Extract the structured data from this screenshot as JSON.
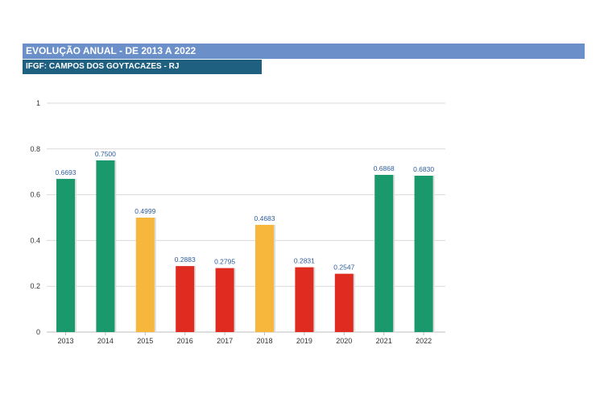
{
  "header": {
    "title": "EVOLUÇÃO ANUAL - DE 2013 A 2022",
    "subtitle": "IFGF: CAMPOS DOS GOYTACAZES - RJ"
  },
  "chart_data": {
    "type": "bar",
    "categories": [
      "2013",
      "2014",
      "2015",
      "2016",
      "2017",
      "2018",
      "2019",
      "2020",
      "2021",
      "2022"
    ],
    "values": [
      0.6693,
      0.75,
      0.4999,
      0.2883,
      0.2795,
      0.4683,
      0.2831,
      0.2547,
      0.6868,
      0.683
    ],
    "value_labels": [
      "0.6693",
      "0.7500",
      "0.4999",
      "0.2883",
      "0.2795",
      "0.4683",
      "0.2831",
      "0.2547",
      "0.6868",
      "0.6830"
    ],
    "bar_colors": [
      "#1a9a6c",
      "#1a9a6c",
      "#f6b73c",
      "#e02b20",
      "#e02b20",
      "#f6b73c",
      "#e02b20",
      "#e02b20",
      "#1a9a6c",
      "#1a9a6c"
    ],
    "yticks": [
      "0",
      "0.2",
      "0.4",
      "0.6",
      "0.8",
      "1"
    ],
    "ylim": [
      0,
      1
    ],
    "grid": true
  }
}
